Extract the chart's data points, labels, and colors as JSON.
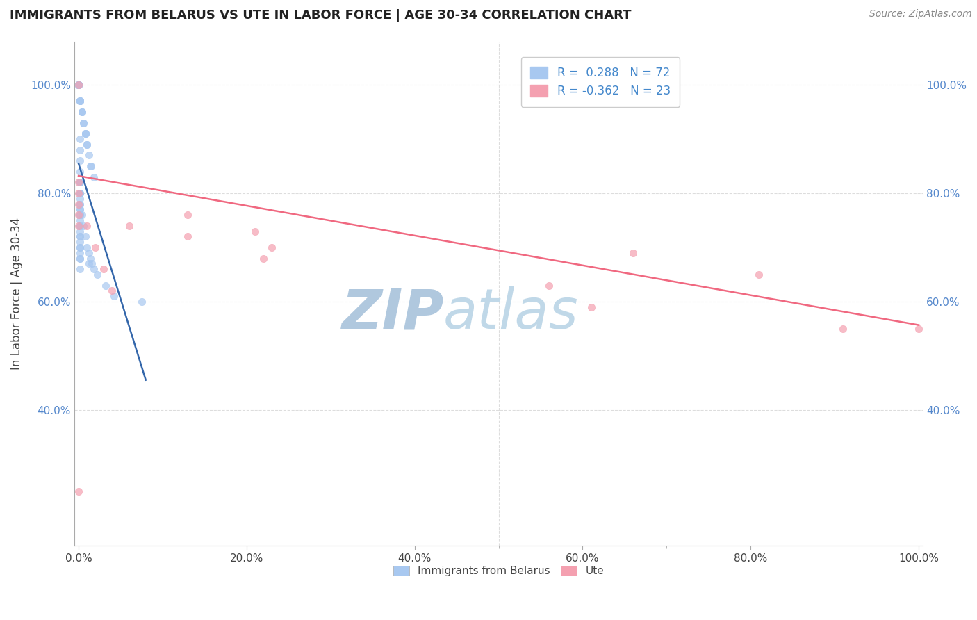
{
  "title": "IMMIGRANTS FROM BELARUS VS UTE IN LABOR FORCE | AGE 30-34 CORRELATION CHART",
  "source_text": "Source: ZipAtlas.com",
  "ylabel": "In Labor Force | Age 30-34",
  "xlim": [
    -0.005,
    1.005
  ],
  "ylim": [
    0.15,
    1.08
  ],
  "xtick_labels": [
    "0.0%",
    "",
    "",
    "",
    "",
    "20.0%",
    "",
    "",
    "",
    "",
    "40.0%",
    "",
    "",
    "",
    "",
    "60.0%",
    "",
    "",
    "",
    "",
    "80.0%",
    "",
    "",
    "",
    "",
    "100.0%"
  ],
  "xtick_vals": [
    0.0,
    0.04,
    0.08,
    0.12,
    0.16,
    0.2,
    0.24,
    0.28,
    0.32,
    0.36,
    0.4,
    0.44,
    0.48,
    0.52,
    0.56,
    0.6,
    0.64,
    0.68,
    0.72,
    0.76,
    0.8,
    0.84,
    0.88,
    0.92,
    0.96,
    1.0
  ],
  "ytick_labels": [
    "40.0%",
    "60.0%",
    "80.0%",
    "100.0%"
  ],
  "ytick_vals": [
    0.4,
    0.6,
    0.8,
    1.0
  ],
  "belarus_color": "#a8c8f0",
  "ute_color": "#f4a0b0",
  "belarus_line_color": "#3366aa",
  "ute_line_color": "#f06880",
  "legend_R_belarus": "R =  0.288",
  "legend_N_belarus": "N = 72",
  "legend_R_ute": "R = -0.362",
  "legend_N_ute": "N = 23",
  "watermark_zip_color": "#b0c8de",
  "watermark_atlas_color": "#c0d8e8",
  "belarus_scatter_x": [
    0.0,
    0.0,
    0.0,
    0.0,
    0.0,
    0.0,
    0.0,
    0.0,
    0.0,
    0.0,
    0.002,
    0.002,
    0.002,
    0.002,
    0.002,
    0.004,
    0.004,
    0.004,
    0.006,
    0.006,
    0.008,
    0.008,
    0.008,
    0.01,
    0.01,
    0.012,
    0.014,
    0.015,
    0.018,
    0.002,
    0.002,
    0.002,
    0.002,
    0.002,
    0.002,
    0.002,
    0.002,
    0.002,
    0.002,
    0.002,
    0.002,
    0.002,
    0.002,
    0.002,
    0.002,
    0.002,
    0.012,
    0.022,
    0.032,
    0.042,
    0.075,
    0.004,
    0.006,
    0.008,
    0.01,
    0.012,
    0.014,
    0.016,
    0.018,
    0.002,
    0.002,
    0.002,
    0.002,
    0.002,
    0.002,
    0.002,
    0.002,
    0.002,
    0.002,
    0.002,
    0.002,
    0.002
  ],
  "belarus_scatter_y": [
    1.0,
    1.0,
    1.0,
    1.0,
    1.0,
    1.0,
    1.0,
    1.0,
    1.0,
    1.0,
    0.97,
    0.97,
    0.97,
    0.97,
    0.97,
    0.95,
    0.95,
    0.95,
    0.93,
    0.93,
    0.91,
    0.91,
    0.91,
    0.89,
    0.89,
    0.87,
    0.85,
    0.85,
    0.83,
    0.82,
    0.82,
    0.8,
    0.8,
    0.79,
    0.78,
    0.77,
    0.77,
    0.76,
    0.75,
    0.74,
    0.73,
    0.72,
    0.71,
    0.7,
    0.69,
    0.68,
    0.67,
    0.65,
    0.63,
    0.61,
    0.6,
    0.76,
    0.74,
    0.72,
    0.7,
    0.69,
    0.68,
    0.67,
    0.66,
    0.9,
    0.88,
    0.86,
    0.84,
    0.82,
    0.8,
    0.78,
    0.76,
    0.74,
    0.72,
    0.7,
    0.68,
    0.66
  ],
  "ute_scatter_x": [
    0.0,
    0.0,
    0.0,
    0.0,
    0.0,
    0.0,
    0.06,
    0.13,
    0.13,
    0.21,
    0.23,
    0.22,
    0.56,
    0.61,
    0.66,
    0.81,
    0.91,
    1.0,
    0.0,
    0.01,
    0.02,
    0.03,
    0.04
  ],
  "ute_scatter_y": [
    0.82,
    0.8,
    0.78,
    0.76,
    0.74,
    1.0,
    0.74,
    0.76,
    0.72,
    0.73,
    0.7,
    0.68,
    0.63,
    0.59,
    0.69,
    0.65,
    0.55,
    0.55,
    0.25,
    0.74,
    0.7,
    0.66,
    0.62
  ],
  "ute_trend_x0": 0.0,
  "ute_trend_y0": 0.832,
  "ute_trend_x1": 1.0,
  "ute_trend_y1": 0.557
}
